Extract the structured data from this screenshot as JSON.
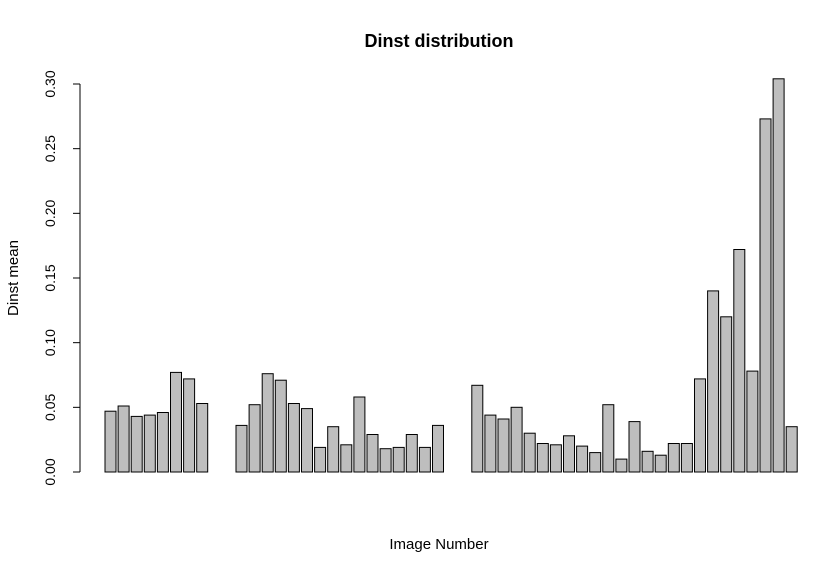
{
  "chart_data": {
    "type": "bar",
    "title": "Dinst distribution",
    "xlabel": "Image Number",
    "ylabel": "Dinst mean",
    "ylim": [
      0,
      0.3
    ],
    "yticks": [
      "0.00",
      "0.05",
      "0.10",
      "0.15",
      "0.20",
      "0.25",
      "0.30"
    ],
    "bar_color": "#bebebe",
    "groups": [
      {
        "values": [
          0.047,
          0.051,
          0.043,
          0.044,
          0.046,
          0.077,
          0.072,
          0.053
        ]
      },
      {
        "values": [
          0.036,
          0.052,
          0.076,
          0.071,
          0.053,
          0.049,
          0.019,
          0.035,
          0.021,
          0.058,
          0.029,
          0.018,
          0.019,
          0.029,
          0.019,
          0.036
        ]
      },
      {
        "values": [
          0.067,
          0.044,
          0.041,
          0.05,
          0.03,
          0.022,
          0.021,
          0.028,
          0.02,
          0.015,
          0.052,
          0.01,
          0.039,
          0.016,
          0.013,
          0.022,
          0.022,
          0.072,
          0.14,
          0.12,
          0.172,
          0.078,
          0.273,
          0.304,
          0.035
        ]
      }
    ]
  }
}
